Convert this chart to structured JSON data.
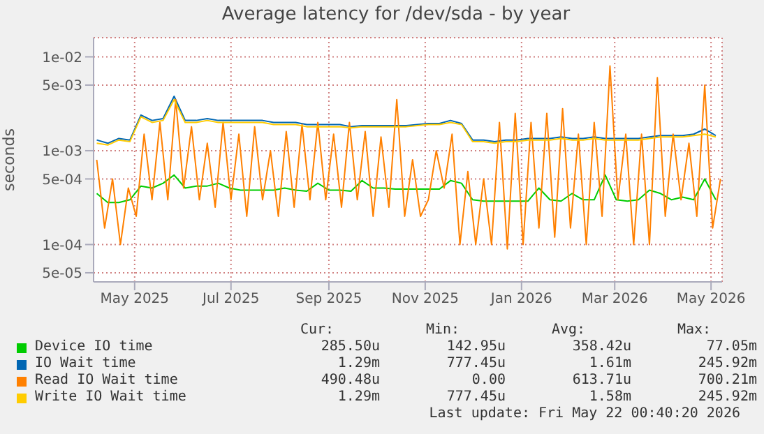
{
  "chart_data": {
    "type": "line",
    "title": "Average latency for /dev/sda - by year",
    "ylabel": "seconds",
    "log": "y",
    "grid": true,
    "legend": "bottom",
    "marker": "none",
    "line_style": "solid",
    "x": [
      "2025-04-21",
      "2025-04-28",
      "2025-05-05",
      "2025-05-12",
      "2025-05-19",
      "2025-05-26",
      "2025-06-02",
      "2025-06-09",
      "2025-06-16",
      "2025-06-23",
      "2025-06-30",
      "2025-07-07",
      "2025-07-14",
      "2025-07-21",
      "2025-07-28",
      "2025-08-04",
      "2025-08-11",
      "2025-08-18",
      "2025-08-25",
      "2025-09-01",
      "2025-09-08",
      "2025-09-15",
      "2025-09-22",
      "2025-09-29",
      "2025-10-06",
      "2025-10-13",
      "2025-10-20",
      "2025-10-27",
      "2025-11-03",
      "2025-11-10",
      "2025-11-17",
      "2025-11-24",
      "2025-12-01",
      "2025-12-08",
      "2025-12-15",
      "2025-12-22",
      "2025-12-29",
      "2026-01-05",
      "2026-01-12",
      "2026-01-19",
      "2026-01-26",
      "2026-02-02",
      "2026-02-09",
      "2026-02-16",
      "2026-02-23",
      "2026-03-02",
      "2026-03-09",
      "2026-03-16",
      "2026-03-23",
      "2026-03-30",
      "2026-04-06",
      "2026-04-13",
      "2026-04-20",
      "2026-04-27",
      "2026-05-04",
      "2026-05-11",
      "2026-05-18"
    ],
    "xlim": [
      "2025-04-19",
      "2026-05-22"
    ],
    "xticks": [
      {
        "value": "2025-05-15",
        "label": "May 2025"
      },
      {
        "value": "2025-07-15",
        "label": "Jul 2025"
      },
      {
        "value": "2025-09-15",
        "label": "Sep 2025"
      },
      {
        "value": "2025-11-15",
        "label": "Nov 2025"
      },
      {
        "value": "2026-01-15",
        "label": "Jan 2026"
      },
      {
        "value": "2026-03-15",
        "label": "Mar 2026"
      },
      {
        "value": "2026-05-15",
        "label": "May 2026"
      }
    ],
    "ylim": [
      4e-05,
      0.016
    ],
    "yticks": [
      {
        "value": 5e-05,
        "label": "5e-05"
      },
      {
        "value": 0.0001,
        "label": "1e-04"
      },
      {
        "value": 0.0005,
        "label": "5e-04"
      },
      {
        "value": 0.001,
        "label": "1e-03"
      },
      {
        "value": 0.005,
        "label": "5e-03"
      },
      {
        "value": 0.01,
        "label": "1e-02"
      }
    ],
    "series": [
      {
        "name": "Device IO time",
        "color": "#00cc00",
        "values": [
          0.00035,
          0.00028,
          0.00028,
          0.0003,
          0.00042,
          0.0004,
          0.00045,
          0.00055,
          0.0004,
          0.00042,
          0.00042,
          0.00045,
          0.0004,
          0.00038,
          0.00038,
          0.00038,
          0.00038,
          0.0004,
          0.00038,
          0.00037,
          0.00045,
          0.00038,
          0.00038,
          0.00037,
          0.00048,
          0.0004,
          0.0004,
          0.00039,
          0.00039,
          0.00039,
          0.00039,
          0.00039,
          0.00048,
          0.00045,
          0.0003,
          0.00029,
          0.00029,
          0.00029,
          0.00029,
          0.00029,
          0.0004,
          0.0003,
          0.00029,
          0.00035,
          0.0003,
          0.0003,
          0.00055,
          0.0003,
          0.00029,
          0.0003,
          0.00038,
          0.00035,
          0.0003,
          0.00032,
          0.0003,
          0.0005,
          0.0003
        ]
      },
      {
        "name": "IO Wait time",
        "color": "#0066b3",
        "values": [
          0.0013,
          0.0012,
          0.00135,
          0.0013,
          0.0024,
          0.0021,
          0.0022,
          0.0038,
          0.0021,
          0.0021,
          0.0022,
          0.0021,
          0.0021,
          0.0021,
          0.0021,
          0.0021,
          0.002,
          0.002,
          0.002,
          0.0019,
          0.0019,
          0.0019,
          0.0019,
          0.0018,
          0.00185,
          0.00185,
          0.00185,
          0.00185,
          0.00185,
          0.0019,
          0.00195,
          0.00195,
          0.0021,
          0.00195,
          0.0013,
          0.0013,
          0.00125,
          0.0013,
          0.0013,
          0.00135,
          0.00135,
          0.00135,
          0.0014,
          0.00135,
          0.00135,
          0.0014,
          0.00135,
          0.00135,
          0.00135,
          0.00135,
          0.0014,
          0.00145,
          0.00145,
          0.00145,
          0.0015,
          0.0017,
          0.00145
        ]
      },
      {
        "name": "Read IO Wait time",
        "color": "#ff8000",
        "x": [
          "2025-04-21",
          "2025-04-26",
          "2025-05-01",
          "2025-05-06",
          "2025-05-11",
          "2025-05-16",
          "2025-05-21",
          "2025-05-26",
          "2025-05-31",
          "2025-06-05",
          "2025-06-10",
          "2025-06-15",
          "2025-06-20",
          "2025-06-25",
          "2025-06-30",
          "2025-07-05",
          "2025-07-10",
          "2025-07-15",
          "2025-07-20",
          "2025-07-25",
          "2025-07-30",
          "2025-08-04",
          "2025-08-09",
          "2025-08-14",
          "2025-08-19",
          "2025-08-24",
          "2025-08-29",
          "2025-09-03",
          "2025-09-08",
          "2025-09-13",
          "2025-09-18",
          "2025-09-23",
          "2025-09-28",
          "2025-10-03",
          "2025-10-08",
          "2025-10-13",
          "2025-10-18",
          "2025-10-23",
          "2025-10-28",
          "2025-11-02",
          "2025-11-07",
          "2025-11-12",
          "2025-11-17",
          "2025-11-22",
          "2025-11-27",
          "2025-12-02",
          "2025-12-07",
          "2025-12-12",
          "2025-12-17",
          "2025-12-22",
          "2025-12-27",
          "2026-01-01",
          "2026-01-06",
          "2026-01-11",
          "2026-01-16",
          "2026-01-21",
          "2026-01-26",
          "2026-01-31",
          "2026-02-05",
          "2026-02-10",
          "2026-02-15",
          "2026-02-20",
          "2026-02-25",
          "2026-03-02",
          "2026-03-07",
          "2026-03-12",
          "2026-03-17",
          "2026-03-22",
          "2026-03-27",
          "2026-04-01",
          "2026-04-06",
          "2026-04-11",
          "2026-04-16",
          "2026-04-21",
          "2026-04-26",
          "2026-05-01",
          "2026-05-06",
          "2026-05-11",
          "2026-05-16",
          "2026-05-21"
        ],
        "values": [
          0.0008,
          0.00015,
          0.0005,
          0.0001,
          0.0004,
          0.0002,
          0.0015,
          0.0003,
          0.002,
          0.0003,
          0.0035,
          0.0004,
          0.0018,
          0.0003,
          0.0012,
          0.00025,
          0.002,
          0.0003,
          0.0015,
          0.0002,
          0.0018,
          0.0003,
          0.001,
          0.0002,
          0.0016,
          0.00025,
          0.0019,
          0.0003,
          0.002,
          0.0003,
          0.0015,
          0.00025,
          0.002,
          0.0003,
          0.0016,
          0.0002,
          0.0014,
          0.00025,
          0.0035,
          0.0002,
          0.0008,
          0.0002,
          0.0003,
          0.001,
          0.0004,
          0.0015,
          0.0001,
          0.0006,
          0.0001,
          0.0005,
          0.0001,
          0.002,
          9e-05,
          0.0025,
          0.0001,
          0.002,
          0.00015,
          0.0025,
          0.00012,
          0.0028,
          0.00015,
          0.0015,
          0.0001,
          0.002,
          0.0002,
          0.008,
          0.0003,
          0.0015,
          0.0001,
          0.0015,
          0.0001,
          0.006,
          0.0002,
          0.0015,
          0.0003,
          0.0012,
          0.0002,
          0.005,
          0.00015,
          0.0005
        ]
      },
      {
        "name": "Write IO Wait time",
        "color": "#ffcc00",
        "values": [
          0.0012,
          0.00115,
          0.0013,
          0.00125,
          0.0023,
          0.002,
          0.0021,
          0.0035,
          0.002,
          0.002,
          0.0021,
          0.002,
          0.002,
          0.002,
          0.002,
          0.002,
          0.0019,
          0.0019,
          0.0019,
          0.0018,
          0.0018,
          0.0018,
          0.0018,
          0.00175,
          0.0018,
          0.0018,
          0.0018,
          0.0018,
          0.0018,
          0.00185,
          0.0019,
          0.0019,
          0.002,
          0.0019,
          0.00125,
          0.00125,
          0.0012,
          0.00125,
          0.00125,
          0.0013,
          0.0013,
          0.0013,
          0.00135,
          0.0013,
          0.0013,
          0.00135,
          0.0013,
          0.0013,
          0.0013,
          0.0013,
          0.00135,
          0.0014,
          0.0014,
          0.0014,
          0.00145,
          0.0015,
          0.0014
        ]
      }
    ],
    "annotations": [
      "Cur:",
      "Min:",
      "Avg:",
      "Max:",
      "285.50u",
      "142.95u",
      "358.42u",
      "77.05m",
      "1.29m",
      "777.45u",
      "1.61m",
      "245.92m",
      "490.48u",
      "0.00",
      "613.71u",
      "700.21m",
      "1.29m",
      "777.45u",
      "1.58m",
      "245.92m",
      "Last update: Fri May 22 00:40:20 2026"
    ]
  }
}
